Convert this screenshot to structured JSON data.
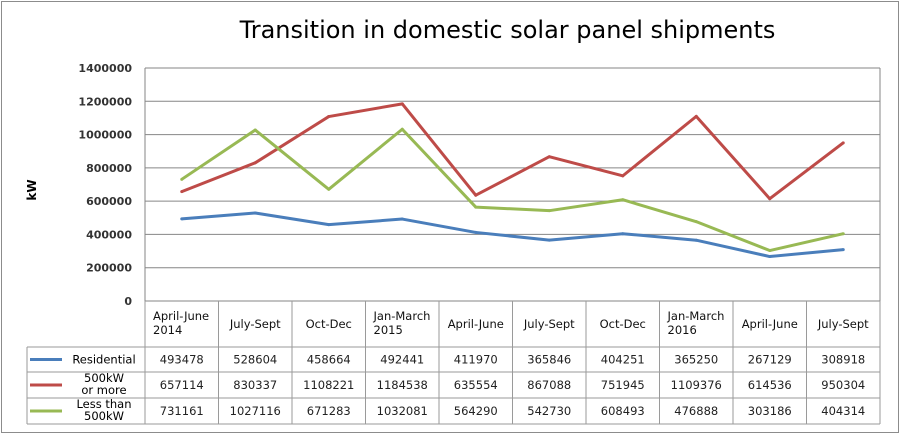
{
  "chart_data": {
    "type": "line",
    "title": "Transition in domestic solar panel shipments",
    "ylabel": "kW",
    "xlabel": "",
    "ylim": [
      0,
      1400000
    ],
    "yticks": [
      "0",
      "200000",
      "400000",
      "600000",
      "800000",
      "1000000",
      "1200000",
      "1400000"
    ],
    "grid": true,
    "legend": "data-table-left",
    "categories": [
      [
        "April-June",
        "2014"
      ],
      [
        "July-Sept"
      ],
      [
        "Oct-Dec"
      ],
      [
        "Jan-March",
        "2015"
      ],
      [
        "April-June"
      ],
      [
        "July-Sept"
      ],
      [
        "Oct-Dec"
      ],
      [
        "Jan-March",
        "2016"
      ],
      [
        "April-June"
      ],
      [
        "July-Sept"
      ]
    ],
    "series": [
      {
        "name": [
          "Residential"
        ],
        "color": "#4a7ebb",
        "values": [
          493478,
          528604,
          458664,
          492441,
          411970,
          365846,
          404251,
          365250,
          267129,
          308918
        ]
      },
      {
        "name": [
          "500kW",
          "or more"
        ],
        "color": "#be4b48",
        "values": [
          657114,
          830337,
          1108221,
          1184538,
          635554,
          867088,
          751945,
          1109376,
          614536,
          950304
        ]
      },
      {
        "name": [
          "Less than",
          "500kW"
        ],
        "color": "#98b954",
        "values": [
          731161,
          1027116,
          671283,
          1032081,
          564290,
          542730,
          608493,
          476888,
          303186,
          404314
        ]
      }
    ]
  }
}
